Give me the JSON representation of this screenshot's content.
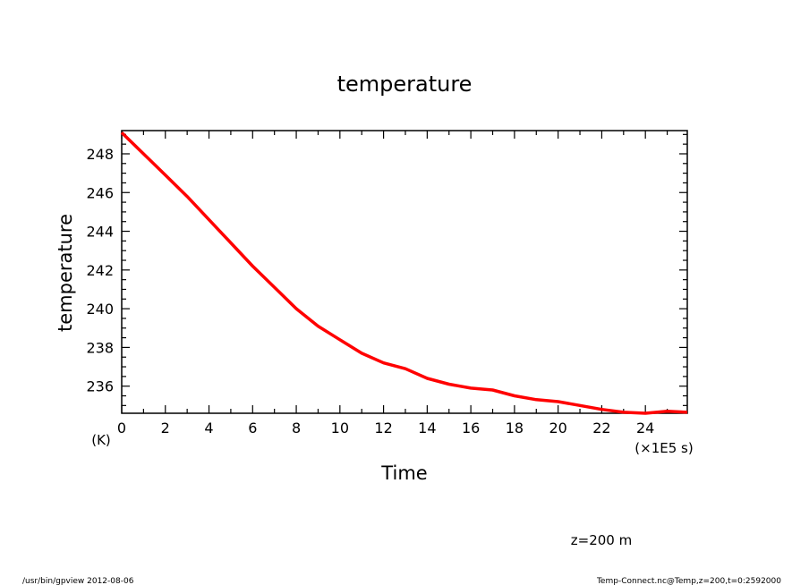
{
  "chart_data": {
    "type": "line",
    "title": "temperature",
    "xlabel": "Time",
    "ylabel": "temperature",
    "y_unit": "(K)",
    "x_unit": "(×1E5 s)",
    "xlim": [
      0,
      25.92
    ],
    "ylim": [
      234.6,
      249.2
    ],
    "x_ticks": [
      0,
      2,
      4,
      6,
      8,
      10,
      12,
      14,
      16,
      18,
      20,
      22,
      24
    ],
    "x_tick_labels": [
      "0",
      "2",
      "4",
      "6",
      "8",
      "10",
      "12",
      "14",
      "16",
      "18",
      "20",
      "22",
      "24"
    ],
    "y_ticks": [
      236,
      238,
      240,
      242,
      244,
      246,
      248
    ],
    "y_tick_labels": [
      "236",
      "238",
      "240",
      "242",
      "244",
      "246",
      "248"
    ],
    "grid": false,
    "line_color": "#ff0000",
    "series": [
      {
        "x": [
          0,
          1,
          2,
          3,
          4,
          5,
          6,
          7,
          8,
          9,
          10,
          11,
          12,
          13,
          14,
          15,
          16,
          17,
          18,
          19,
          20,
          21,
          22,
          23,
          24,
          25,
          25.92
        ],
        "y": [
          249.1,
          248.0,
          246.9,
          245.8,
          244.6,
          243.4,
          242.2,
          241.1,
          240.0,
          239.1,
          238.4,
          237.7,
          237.2,
          236.9,
          236.4,
          236.1,
          235.9,
          235.8,
          235.5,
          235.3,
          235.2,
          235.0,
          234.8,
          234.65,
          234.6,
          234.7,
          234.65
        ]
      }
    ]
  },
  "annotations": {
    "level": "z=200  m",
    "footer_left": "/usr/bin/gpview   2012-08-06",
    "footer_right": "Temp-Connect.nc@Temp,z=200,t=0:2592000"
  }
}
